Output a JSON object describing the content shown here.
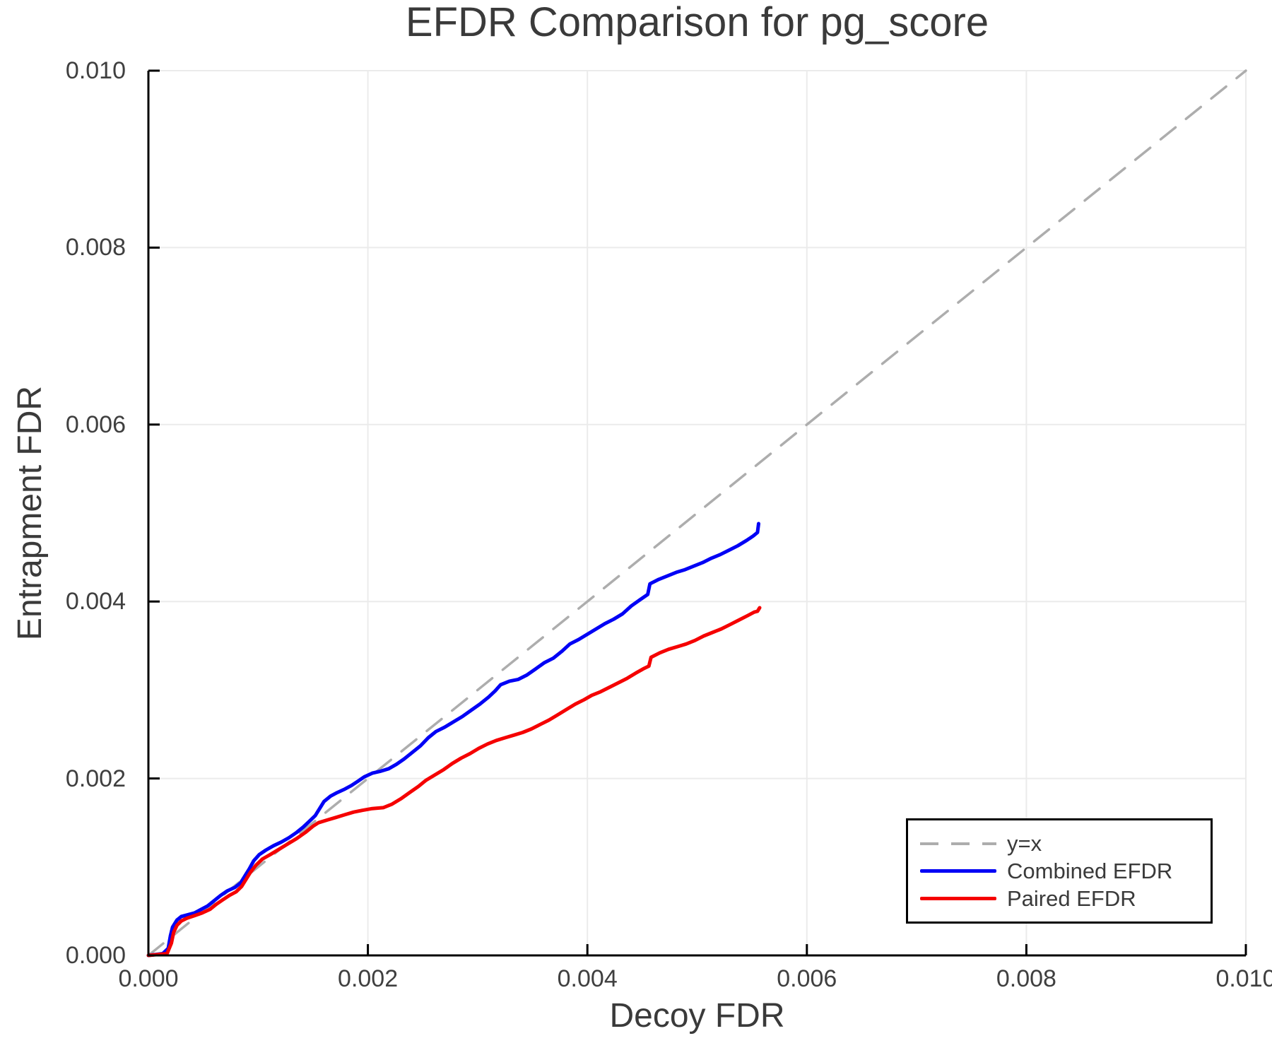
{
  "title": "EFDR Comparison for pg_score",
  "axes": {
    "xlabel": "Decoy FDR",
    "ylabel": "Entrapment FDR"
  },
  "colors": {
    "grid": "#ebebeb",
    "spine": "#000000",
    "text": "#3a3a3a",
    "identity_line": "#adadad",
    "combined": "#0000f5",
    "paired": "#f50000",
    "legend_border": "#000000",
    "background": "#ffffff"
  },
  "chart_data": {
    "type": "line",
    "title": "EFDR Comparison for pg_score",
    "xlabel": "Decoy FDR",
    "ylabel": "Entrapment FDR",
    "xlim": [
      0,
      0.01
    ],
    "ylim": [
      0,
      0.01
    ],
    "grid": true,
    "legend_position": "lower right",
    "x_ticks": [
      {
        "v": 0.0,
        "label": "0.000"
      },
      {
        "v": 0.002,
        "label": "0.002"
      },
      {
        "v": 0.004,
        "label": "0.004"
      },
      {
        "v": 0.006,
        "label": "0.006"
      },
      {
        "v": 0.008,
        "label": "0.008"
      },
      {
        "v": 0.01,
        "label": "0.010"
      }
    ],
    "y_ticks": [
      {
        "v": 0.0,
        "label": "0.000"
      },
      {
        "v": 0.002,
        "label": "0.002"
      },
      {
        "v": 0.004,
        "label": "0.004"
      },
      {
        "v": 0.006,
        "label": "0.006"
      },
      {
        "v": 0.008,
        "label": "0.008"
      },
      {
        "v": 0.01,
        "label": "0.010"
      }
    ],
    "series": [
      {
        "name": "y=x",
        "color": "#adadad",
        "style": "dashed",
        "width": 3.5,
        "dash": "27 19",
        "points": [
          [
            0,
            0
          ],
          [
            0.01,
            0.01
          ]
        ]
      },
      {
        "name": "Combined EFDR",
        "color": "#0000f5",
        "style": "solid",
        "width": 5,
        "points": [
          [
            0.0,
            0.0
          ],
          [
            0.00013,
            2e-05
          ],
          [
            0.00018,
            8e-05
          ],
          [
            0.0002,
            0.00022
          ],
          [
            0.00022,
            0.00032
          ],
          [
            0.00026,
            0.0004
          ],
          [
            0.0003,
            0.00044
          ],
          [
            0.00036,
            0.00046
          ],
          [
            0.00042,
            0.00048
          ],
          [
            0.00048,
            0.00052
          ],
          [
            0.00054,
            0.00056
          ],
          [
            0.0006,
            0.00062
          ],
          [
            0.00066,
            0.00068
          ],
          [
            0.00072,
            0.00073
          ],
          [
            0.00079,
            0.00077
          ],
          [
            0.00084,
            0.00082
          ],
          [
            0.00088,
            0.0009
          ],
          [
            0.00092,
            0.00098
          ],
          [
            0.00096,
            0.00107
          ],
          [
            0.00101,
            0.00114
          ],
          [
            0.00107,
            0.00119
          ],
          [
            0.00114,
            0.00124
          ],
          [
            0.00121,
            0.00128
          ],
          [
            0.00128,
            0.00133
          ],
          [
            0.00135,
            0.00139
          ],
          [
            0.00141,
            0.00145
          ],
          [
            0.00147,
            0.00152
          ],
          [
            0.00152,
            0.00158
          ],
          [
            0.00156,
            0.00166
          ],
          [
            0.0016,
            0.00174
          ],
          [
            0.00166,
            0.0018
          ],
          [
            0.00172,
            0.00184
          ],
          [
            0.00179,
            0.00188
          ],
          [
            0.00185,
            0.00192
          ],
          [
            0.00191,
            0.00197
          ],
          [
            0.00197,
            0.00202
          ],
          [
            0.00204,
            0.00206
          ],
          [
            0.00211,
            0.00208
          ],
          [
            0.00219,
            0.00211
          ],
          [
            0.00226,
            0.00216
          ],
          [
            0.00233,
            0.00222
          ],
          [
            0.0024,
            0.00229
          ],
          [
            0.00248,
            0.00237
          ],
          [
            0.00255,
            0.00246
          ],
          [
            0.00262,
            0.00253
          ],
          [
            0.0027,
            0.00258
          ],
          [
            0.00278,
            0.00264
          ],
          [
            0.00286,
            0.0027
          ],
          [
            0.00294,
            0.00277
          ],
          [
            0.00302,
            0.00284
          ],
          [
            0.0031,
            0.00292
          ],
          [
            0.00316,
            0.00299
          ],
          [
            0.00321,
            0.00306
          ],
          [
            0.00329,
            0.0031
          ],
          [
            0.00337,
            0.00312
          ],
          [
            0.00345,
            0.00317
          ],
          [
            0.00353,
            0.00324
          ],
          [
            0.00361,
            0.00331
          ],
          [
            0.00369,
            0.00336
          ],
          [
            0.00377,
            0.00344
          ],
          [
            0.00384,
            0.00352
          ],
          [
            0.00392,
            0.00357
          ],
          [
            0.004,
            0.00363
          ],
          [
            0.00408,
            0.00369
          ],
          [
            0.00416,
            0.00375
          ],
          [
            0.00424,
            0.0038
          ],
          [
            0.00432,
            0.00386
          ],
          [
            0.0044,
            0.00395
          ],
          [
            0.00448,
            0.00402
          ],
          [
            0.00455,
            0.00408
          ],
          [
            0.00457,
            0.0042
          ],
          [
            0.00465,
            0.00425
          ],
          [
            0.00473,
            0.00429
          ],
          [
            0.00481,
            0.00433
          ],
          [
            0.00489,
            0.00436
          ],
          [
            0.00497,
            0.0044
          ],
          [
            0.00505,
            0.00444
          ],
          [
            0.00513,
            0.00449
          ],
          [
            0.00521,
            0.00453
          ],
          [
            0.00529,
            0.00458
          ],
          [
            0.00537,
            0.00463
          ],
          [
            0.00545,
            0.00469
          ],
          [
            0.00551,
            0.00474
          ],
          [
            0.00555,
            0.00478
          ],
          [
            0.00556,
            0.00488
          ]
        ]
      },
      {
        "name": "Paired EFDR",
        "color": "#f50000",
        "style": "solid",
        "width": 5,
        "points": [
          [
            0.0,
            0.0
          ],
          [
            0.00017,
            2e-05
          ],
          [
            0.00021,
            0.00014
          ],
          [
            0.00023,
            0.00026
          ],
          [
            0.00026,
            0.00034
          ],
          [
            0.0003,
            0.00039
          ],
          [
            0.00035,
            0.00042
          ],
          [
            0.00042,
            0.00045
          ],
          [
            0.00049,
            0.00048
          ],
          [
            0.00056,
            0.00052
          ],
          [
            0.00062,
            0.00058
          ],
          [
            0.00068,
            0.00063
          ],
          [
            0.00074,
            0.00068
          ],
          [
            0.0008,
            0.00072
          ],
          [
            0.00085,
            0.00078
          ],
          [
            0.00089,
            0.00086
          ],
          [
            0.00093,
            0.00094
          ],
          [
            0.00098,
            0.00102
          ],
          [
            0.00104,
            0.00109
          ],
          [
            0.00111,
            0.00114
          ],
          [
            0.00119,
            0.0012
          ],
          [
            0.00127,
            0.00126
          ],
          [
            0.00135,
            0.00132
          ],
          [
            0.00143,
            0.00139
          ],
          [
            0.0015,
            0.00146
          ],
          [
            0.00155,
            0.0015
          ],
          [
            0.00163,
            0.00153
          ],
          [
            0.00171,
            0.00156
          ],
          [
            0.00179,
            0.00159
          ],
          [
            0.00187,
            0.00162
          ],
          [
            0.00195,
            0.00164
          ],
          [
            0.00204,
            0.00166
          ],
          [
            0.00214,
            0.00167
          ],
          [
            0.00222,
            0.00171
          ],
          [
            0.0023,
            0.00177
          ],
          [
            0.00238,
            0.00184
          ],
          [
            0.00246,
            0.00191
          ],
          [
            0.00253,
            0.00198
          ],
          [
            0.00261,
            0.00204
          ],
          [
            0.00269,
            0.0021
          ],
          [
            0.00277,
            0.00217
          ],
          [
            0.00285,
            0.00223
          ],
          [
            0.00293,
            0.00228
          ],
          [
            0.00301,
            0.00234
          ],
          [
            0.00309,
            0.00239
          ],
          [
            0.00317,
            0.00243
          ],
          [
            0.00325,
            0.00246
          ],
          [
            0.00333,
            0.00249
          ],
          [
            0.00341,
            0.00252
          ],
          [
            0.00349,
            0.00256
          ],
          [
            0.00357,
            0.00261
          ],
          [
            0.00365,
            0.00266
          ],
          [
            0.00373,
            0.00272
          ],
          [
            0.00381,
            0.00278
          ],
          [
            0.00389,
            0.00284
          ],
          [
            0.00397,
            0.00289
          ],
          [
            0.00404,
            0.00294
          ],
          [
            0.00412,
            0.00298
          ],
          [
            0.0042,
            0.00303
          ],
          [
            0.00428,
            0.00308
          ],
          [
            0.00436,
            0.00313
          ],
          [
            0.00444,
            0.00319
          ],
          [
            0.00451,
            0.00324
          ],
          [
            0.00456,
            0.00327
          ],
          [
            0.00458,
            0.00337
          ],
          [
            0.00466,
            0.00342
          ],
          [
            0.00474,
            0.00346
          ],
          [
            0.00482,
            0.00349
          ],
          [
            0.0049,
            0.00352
          ],
          [
            0.00498,
            0.00356
          ],
          [
            0.00506,
            0.00361
          ],
          [
            0.00514,
            0.00365
          ],
          [
            0.00522,
            0.00369
          ],
          [
            0.0053,
            0.00374
          ],
          [
            0.00538,
            0.00379
          ],
          [
            0.00546,
            0.00384
          ],
          [
            0.00552,
            0.00388
          ],
          [
            0.00555,
            0.00389
          ],
          [
            0.00557,
            0.00393
          ]
        ]
      }
    ]
  }
}
